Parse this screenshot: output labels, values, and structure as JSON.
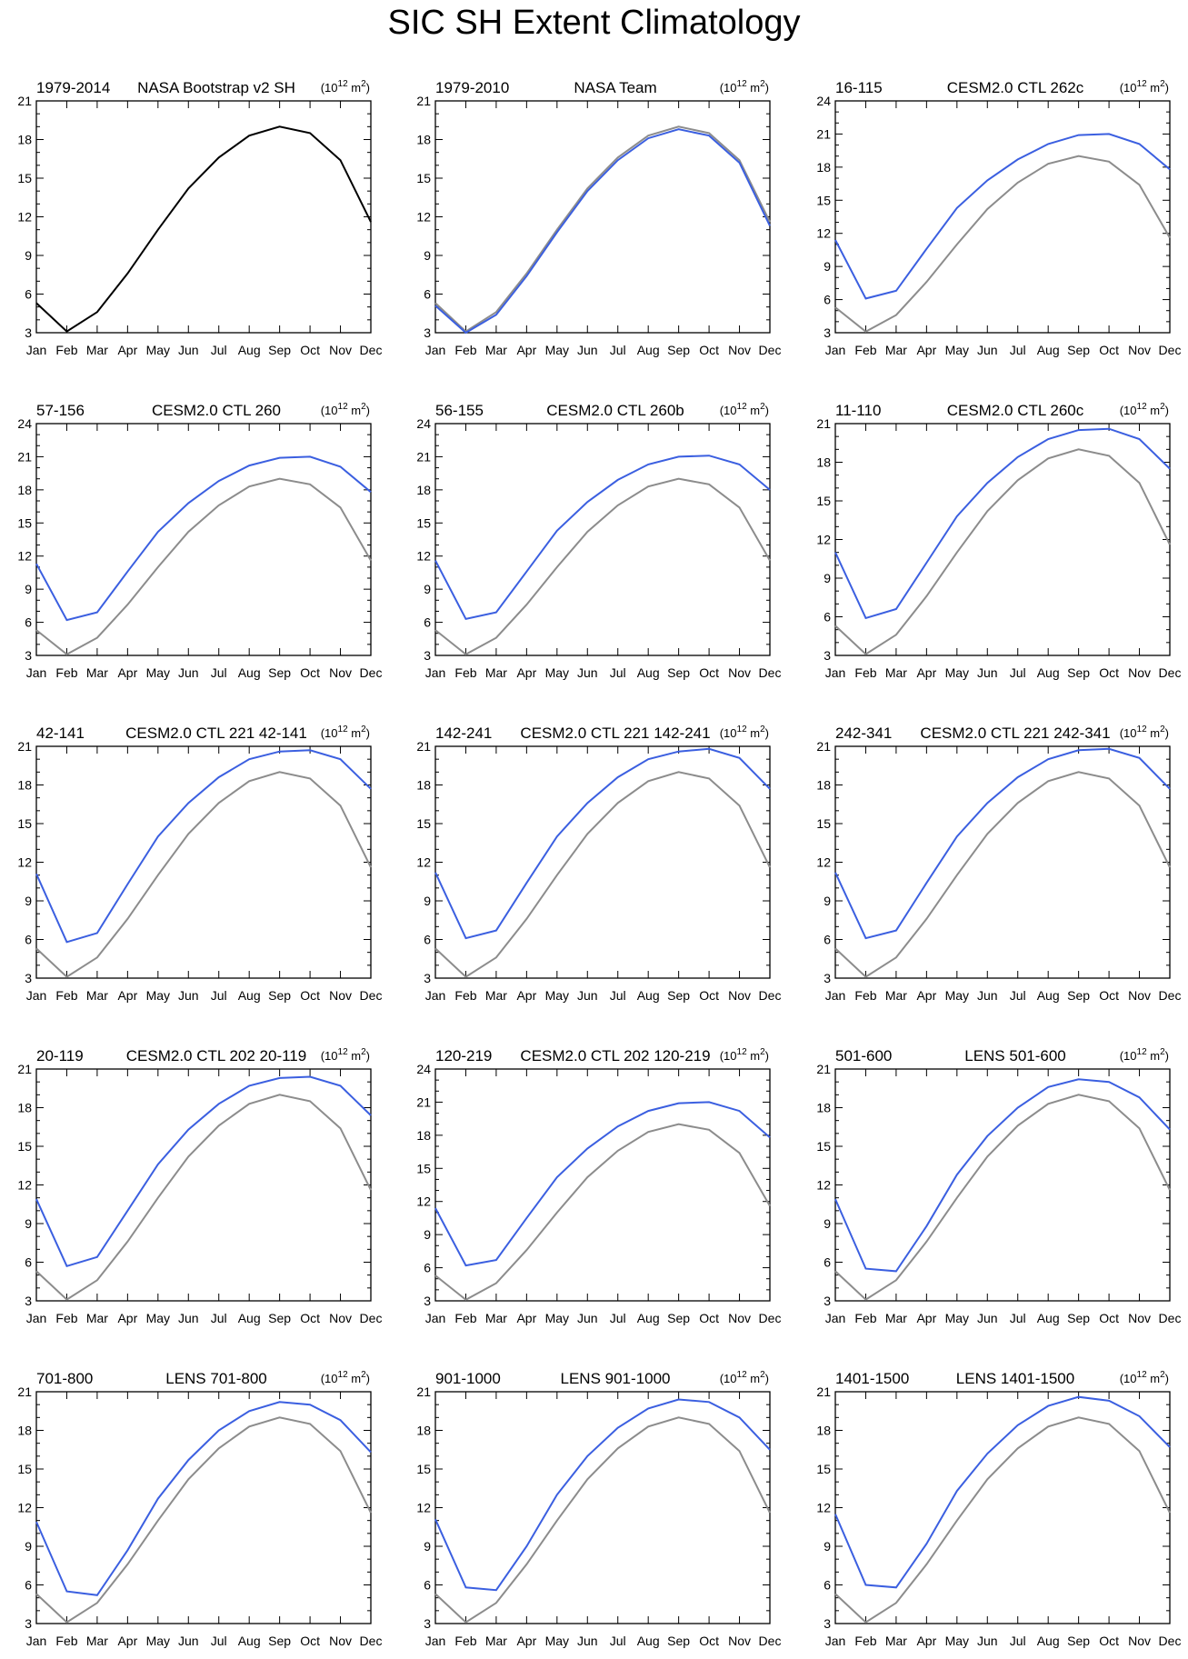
{
  "title": "SIC SH Extent Climatology",
  "chart_data": {
    "type": "line",
    "months": [
      "Jan",
      "Feb",
      "Mar",
      "Apr",
      "May",
      "Jun",
      "Jul",
      "Aug",
      "Sep",
      "Oct",
      "Nov",
      "Dec"
    ],
    "units_base": "(10",
    "units_exp": "12",
    "units_unit": "m",
    "units_exp2": "2",
    "units_close": ")",
    "colors": {
      "model": "#3b5fe0",
      "obs_reference": "#8c8c8c",
      "obs": "#000000"
    },
    "reference_series": [
      5.3,
      3.1,
      4.6,
      7.6,
      11.0,
      14.2,
      16.6,
      18.3,
      19.0,
      18.5,
      16.4,
      11.6
    ],
    "panels": [
      {
        "left": "1979-2014",
        "center": "NASA Bootstrap v2 SH",
        "ylim": [
          3,
          21
        ],
        "yticks": [
          "3",
          "6",
          "9",
          "12",
          "15",
          "18",
          "21"
        ],
        "kind": "obs",
        "values": [
          5.3,
          3.1,
          4.6,
          7.6,
          11.0,
          14.2,
          16.6,
          18.3,
          19.0,
          18.5,
          16.4,
          11.6
        ]
      },
      {
        "left": "1979-2010",
        "center": "NASA Team",
        "ylim": [
          3,
          21
        ],
        "yticks": [
          "3",
          "6",
          "9",
          "12",
          "15",
          "18",
          "21"
        ],
        "kind": "model",
        "values": [
          5.1,
          3.0,
          4.4,
          7.4,
          10.8,
          14.0,
          16.4,
          18.1,
          18.8,
          18.3,
          16.2,
          11.3
        ]
      },
      {
        "left": "16-115",
        "center": "CESM2.0 CTL 262c",
        "ylim": [
          3,
          24
        ],
        "yticks": [
          "3",
          "6",
          "9",
          "12",
          "15",
          "18",
          "21",
          "24"
        ],
        "kind": "model",
        "values": [
          11.4,
          6.1,
          6.8,
          10.6,
          14.3,
          16.8,
          18.7,
          20.1,
          20.9,
          21.0,
          20.1,
          17.8
        ]
      },
      {
        "left": "57-156",
        "center": "CESM2.0 CTL 260",
        "ylim": [
          3,
          24
        ],
        "yticks": [
          "3",
          "6",
          "9",
          "12",
          "15",
          "18",
          "21",
          "24"
        ],
        "kind": "model",
        "values": [
          11.3,
          6.2,
          6.9,
          10.6,
          14.2,
          16.8,
          18.8,
          20.2,
          20.9,
          21.0,
          20.1,
          17.8
        ]
      },
      {
        "left": "56-155",
        "center": "CESM2.0 CTL 260b",
        "ylim": [
          3,
          24
        ],
        "yticks": [
          "3",
          "6",
          "9",
          "12",
          "15",
          "18",
          "21",
          "24"
        ],
        "kind": "model",
        "values": [
          11.6,
          6.3,
          6.9,
          10.6,
          14.3,
          16.9,
          18.9,
          20.3,
          21.0,
          21.1,
          20.3,
          18.0
        ]
      },
      {
        "left": "11-110",
        "center": "CESM2.0 CTL 260c",
        "ylim": [
          3,
          21
        ],
        "yticks": [
          "3",
          "6",
          "9",
          "12",
          "15",
          "18",
          "21"
        ],
        "kind": "model",
        "values": [
          11.0,
          5.9,
          6.6,
          10.2,
          13.8,
          16.4,
          18.4,
          19.8,
          20.5,
          20.6,
          19.8,
          17.5
        ]
      },
      {
        "left": "42-141",
        "center": "CESM2.0 CTL 221 42-141",
        "ylim": [
          3,
          21
        ],
        "yticks": [
          "3",
          "6",
          "9",
          "12",
          "15",
          "18",
          "21"
        ],
        "kind": "model",
        "values": [
          11.1,
          5.8,
          6.5,
          10.3,
          14.0,
          16.6,
          18.6,
          20.0,
          20.6,
          20.7,
          20.0,
          17.7
        ]
      },
      {
        "left": "142-241",
        "center": "CESM2.0 CTL 221 142-241",
        "ylim": [
          3,
          21
        ],
        "yticks": [
          "3",
          "6",
          "9",
          "12",
          "15",
          "18",
          "21"
        ],
        "kind": "model",
        "values": [
          11.2,
          6.1,
          6.7,
          10.4,
          14.0,
          16.6,
          18.6,
          20.0,
          20.6,
          20.8,
          20.1,
          17.7
        ]
      },
      {
        "left": "242-341",
        "center": "CESM2.0 CTL 221 242-341",
        "ylim": [
          3,
          21
        ],
        "yticks": [
          "3",
          "6",
          "9",
          "12",
          "15",
          "18",
          "21"
        ],
        "kind": "model",
        "values": [
          11.2,
          6.1,
          6.7,
          10.4,
          14.0,
          16.6,
          18.6,
          20.0,
          20.7,
          20.8,
          20.1,
          17.7
        ]
      },
      {
        "left": "20-119",
        "center": "CESM2.0 CTL 202 20-119",
        "ylim": [
          3,
          21
        ],
        "yticks": [
          "3",
          "6",
          "9",
          "12",
          "15",
          "18",
          "21"
        ],
        "kind": "model",
        "values": [
          10.9,
          5.7,
          6.4,
          10.0,
          13.6,
          16.3,
          18.3,
          19.7,
          20.3,
          20.4,
          19.7,
          17.4
        ]
      },
      {
        "left": "120-219",
        "center": "CESM2.0 CTL 202 120-219",
        "ylim": [
          3,
          24
        ],
        "yticks": [
          "3",
          "6",
          "9",
          "12",
          "15",
          "18",
          "21",
          "24"
        ],
        "kind": "model",
        "values": [
          11.4,
          6.2,
          6.7,
          10.5,
          14.2,
          16.8,
          18.8,
          20.2,
          20.9,
          21.0,
          20.2,
          17.8
        ]
      },
      {
        "left": "501-600",
        "center": "LENS 501-600",
        "ylim": [
          3,
          21
        ],
        "yticks": [
          "3",
          "6",
          "9",
          "12",
          "15",
          "18",
          "21"
        ],
        "kind": "model",
        "values": [
          10.9,
          5.5,
          5.3,
          8.8,
          12.8,
          15.8,
          18.0,
          19.6,
          20.2,
          20.0,
          18.8,
          16.3
        ]
      },
      {
        "left": "701-800",
        "center": "LENS 701-800",
        "ylim": [
          3,
          21
        ],
        "yticks": [
          "3",
          "6",
          "9",
          "12",
          "15",
          "18",
          "21"
        ],
        "kind": "model",
        "values": [
          10.9,
          5.5,
          5.2,
          8.7,
          12.7,
          15.7,
          18.0,
          19.5,
          20.2,
          20.0,
          18.8,
          16.3
        ]
      },
      {
        "left": "901-1000",
        "center": "LENS 901-1000",
        "ylim": [
          3,
          21
        ],
        "yticks": [
          "3",
          "6",
          "9",
          "12",
          "15",
          "18",
          "21"
        ],
        "kind": "model",
        "values": [
          11.1,
          5.8,
          5.6,
          9.0,
          13.0,
          16.0,
          18.2,
          19.7,
          20.4,
          20.2,
          19.0,
          16.5
        ]
      },
      {
        "left": "1401-1500",
        "center": "LENS 1401-1500",
        "ylim": [
          3,
          21
        ],
        "yticks": [
          "3",
          "6",
          "9",
          "12",
          "15",
          "18",
          "21"
        ],
        "kind": "model",
        "values": [
          11.5,
          6.0,
          5.8,
          9.2,
          13.3,
          16.2,
          18.4,
          19.9,
          20.6,
          20.3,
          19.1,
          16.7
        ]
      }
    ]
  }
}
